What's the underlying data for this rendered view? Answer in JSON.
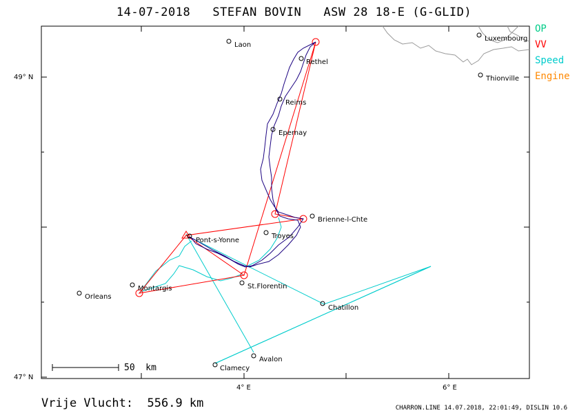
{
  "title": "14-07-2018   STEFAN BOVIN   ASW 28 18-E (G-GLID)",
  "legend": [
    {
      "label": "OP",
      "color": "#00cc88"
    },
    {
      "label": "VV",
      "color": "#ff0000"
    },
    {
      "label": "Speed",
      "color": "#00cccc"
    },
    {
      "label": "Engine",
      "color": "#ff8800"
    }
  ],
  "footer_distance": "Vrije Vlucht:  556.9 km",
  "footer_credit": "CHARRON.LINE 14.07.2018, 22:01:49, DISLIN 10.6",
  "axes": {
    "lat_ticks": [
      {
        "label": "49° N"
      },
      {
        "label": "47° N"
      }
    ],
    "lon_ticks": [
      {
        "label": "4° E"
      },
      {
        "label": "6° E"
      }
    ]
  },
  "scale_bar": {
    "label": "50  km"
  },
  "towns": [
    {
      "name": "Laon"
    },
    {
      "name": "Rethel"
    },
    {
      "name": "Reims"
    },
    {
      "name": "Epernay"
    },
    {
      "name": "Brienne-l-Chte"
    },
    {
      "name": "Troyes"
    },
    {
      "name": "Pont-s-Yonne"
    },
    {
      "name": "Montargis"
    },
    {
      "name": "St.Florentin"
    },
    {
      "name": "Chatillon"
    },
    {
      "name": "Orleans"
    },
    {
      "name": "Avalon"
    },
    {
      "name": "Clamecy"
    },
    {
      "name": "Luxembourg"
    },
    {
      "name": "Thionville"
    }
  ],
  "colors": {
    "track": "#1a0080",
    "vv": "#ff0000",
    "speed": "#00cccc",
    "border": "#999999"
  }
}
